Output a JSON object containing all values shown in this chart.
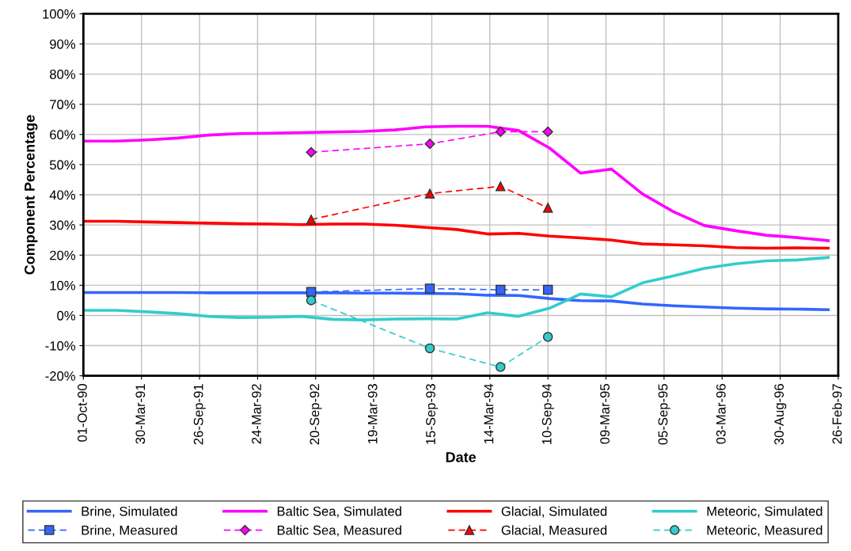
{
  "chart_data": {
    "type": "line",
    "xlabel": "Date",
    "ylabel": "Component Percentage",
    "xlim": [
      "1990-10-01",
      "1997-02-26"
    ],
    "ylim": [
      -20,
      100
    ],
    "xticks": [
      {
        "value": "1990-10-01",
        "label": "01-Oct-90"
      },
      {
        "value": "1991-03-30",
        "label": "30-Mar-91"
      },
      {
        "value": "1991-09-26",
        "label": "26-Sep-91"
      },
      {
        "value": "1992-03-24",
        "label": "24-Mar-92"
      },
      {
        "value": "1992-09-20",
        "label": "20-Sep-92"
      },
      {
        "value": "1993-03-19",
        "label": "19-Mar-93"
      },
      {
        "value": "1993-09-15",
        "label": "15-Sep-93"
      },
      {
        "value": "1994-03-14",
        "label": "14-Mar-94"
      },
      {
        "value": "1994-09-10",
        "label": "10-Sep-94"
      },
      {
        "value": "1995-03-09",
        "label": "09-Mar-95"
      },
      {
        "value": "1995-09-05",
        "label": "05-Sep-95"
      },
      {
        "value": "1996-03-03",
        "label": "03-Mar-96"
      },
      {
        "value": "1996-08-30",
        "label": "30-Aug-96"
      },
      {
        "value": "1997-02-26",
        "label": "26-Feb-97"
      }
    ],
    "yticks": [
      {
        "value": -20,
        "label": "-20%"
      },
      {
        "value": -10,
        "label": "-10%"
      },
      {
        "value": 0,
        "label": "0%"
      },
      {
        "value": 10,
        "label": "10%"
      },
      {
        "value": 20,
        "label": "20%"
      },
      {
        "value": 30,
        "label": "30%"
      },
      {
        "value": 40,
        "label": "40%"
      },
      {
        "value": 50,
        "label": "50%"
      },
      {
        "value": 60,
        "label": "60%"
      },
      {
        "value": 70,
        "label": "70%"
      },
      {
        "value": 80,
        "label": "80%"
      },
      {
        "value": 90,
        "label": "90%"
      },
      {
        "value": 100,
        "label": "100%"
      }
    ],
    "grid": true,
    "legend": "bottom",
    "x": [
      "1990-10-06",
      "1991-01-10",
      "1991-04-16",
      "1991-07-21",
      "1991-10-25",
      "1992-01-29",
      "1992-05-04",
      "1992-08-08",
      "1992-11-12",
      "1993-02-16",
      "1993-05-23",
      "1993-08-27",
      "1993-12-01",
      "1994-03-07",
      "1994-06-11",
      "1994-09-15",
      "1994-12-20",
      "1995-03-26",
      "1995-06-30",
      "1995-10-04",
      "1996-01-08",
      "1996-04-13",
      "1996-07-18",
      "1996-10-22",
      "1997-01-26"
    ],
    "series": [
      {
        "name": "Brine, Simulated",
        "color": "#3366ff",
        "marker": "none",
        "line_style": "solid",
        "values": [
          7.6,
          7.6,
          7.6,
          7.6,
          7.5,
          7.5,
          7.5,
          7.5,
          7.5,
          7.4,
          7.4,
          7.3,
          7.2,
          6.7,
          6.6,
          5.6,
          4.9,
          4.8,
          3.8,
          3.2,
          2.8,
          2.4,
          2.2,
          2.1,
          1.9
        ]
      },
      {
        "name": "Baltic Sea, Simulated",
        "color": "#ff00ff",
        "marker": "none",
        "line_style": "solid",
        "values": [
          57.8,
          57.8,
          58.2,
          58.8,
          59.8,
          60.3,
          60.4,
          60.6,
          60.8,
          61.0,
          61.5,
          62.5,
          62.7,
          62.7,
          61.3,
          55.5,
          47.2,
          48.5,
          40.3,
          34.4,
          29.8,
          28.1,
          26.6,
          25.8,
          24.8
        ]
      },
      {
        "name": "Glacial, Simulated",
        "color": "#ff0000",
        "marker": "none",
        "line_style": "solid",
        "values": [
          31.2,
          31.2,
          31.0,
          30.8,
          30.6,
          30.4,
          30.3,
          30.1,
          30.3,
          30.3,
          29.9,
          29.2,
          28.5,
          27.0,
          27.2,
          26.3,
          25.7,
          25.0,
          23.7,
          23.4,
          23.1,
          22.5,
          22.3,
          22.4,
          22.3
        ]
      },
      {
        "name": "Meteoric, Simulated",
        "color": "#33cccc",
        "marker": "none",
        "line_style": "solid",
        "values": [
          1.7,
          1.7,
          1.2,
          0.6,
          -0.3,
          -0.7,
          -0.6,
          -0.3,
          -1.3,
          -1.5,
          -1.2,
          -1.1,
          -1.2,
          0.9,
          -0.3,
          2.4,
          7.1,
          6.2,
          10.8,
          13.1,
          15.6,
          17.1,
          18.1,
          18.4,
          19.2
        ]
      },
      {
        "name": "Brine, Measured",
        "color": "#3366ff",
        "marker": "square",
        "line_style": "dashed",
        "x": [
          "1992-09-06",
          "1993-09-09",
          "1994-04-16",
          "1994-09-10"
        ],
        "values": [
          7.8,
          8.9,
          8.5,
          8.5
        ]
      },
      {
        "name": "Baltic Sea, Measured",
        "color": "#ff00ff",
        "marker": "diamond",
        "line_style": "dashed",
        "x": [
          "1992-09-06",
          "1993-09-09",
          "1994-04-16",
          "1994-09-10"
        ],
        "values": [
          54.1,
          56.9,
          60.9,
          60.9
        ]
      },
      {
        "name": "Glacial, Measured",
        "color": "#ff0000",
        "marker": "triangle",
        "line_style": "dashed",
        "x": [
          "1992-09-06",
          "1993-09-09",
          "1994-04-16",
          "1994-09-10"
        ],
        "values": [
          31.8,
          40.4,
          42.8,
          35.7
        ]
      },
      {
        "name": "Meteoric, Measured",
        "color": "#33cccc",
        "marker": "circle",
        "line_style": "dashed",
        "x": [
          "1992-09-06",
          "1993-09-09",
          "1994-04-16",
          "1994-09-10"
        ],
        "values": [
          5.0,
          -10.9,
          -17.1,
          -7.1
        ]
      }
    ]
  }
}
